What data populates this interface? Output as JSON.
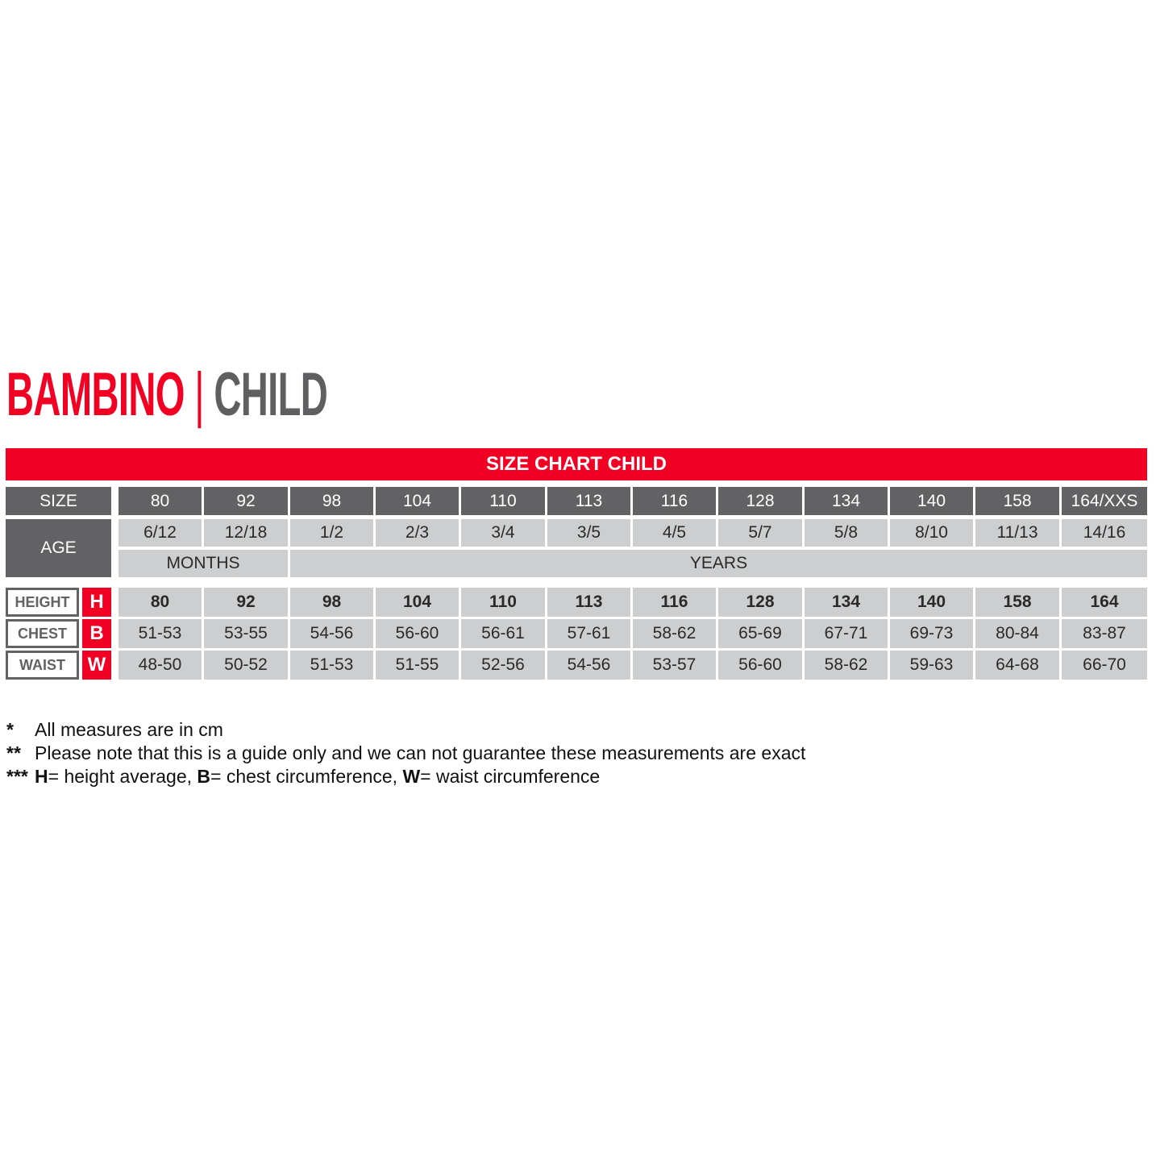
{
  "title": {
    "left": "BAMBINO",
    "separator": "|",
    "right": "CHILD"
  },
  "banner": "SIZE CHART CHILD",
  "colors": {
    "brand_red": "#f20023",
    "dark_grey": "#626264",
    "light_grey": "#cdcecf"
  },
  "rows": {
    "size_label": "SIZE",
    "sizes": [
      "80",
      "92",
      "98",
      "104",
      "110",
      "113",
      "116",
      "128",
      "134",
      "140",
      "158",
      "164/XXS"
    ],
    "age_label": "AGE",
    "ages": [
      "6/12",
      "12/18",
      "1/2",
      "2/3",
      "3/4",
      "3/5",
      "4/5",
      "5/7",
      "5/8",
      "8/10",
      "11/13",
      "14/16"
    ],
    "months_label": "MONTHS",
    "years_label": "YEARS",
    "height": {
      "label": "HEIGHT",
      "letter": "H",
      "values": [
        "80",
        "92",
        "98",
        "104",
        "110",
        "113",
        "116",
        "128",
        "134",
        "140",
        "158",
        "164"
      ]
    },
    "chest": {
      "label": "CHEST",
      "letter": "B",
      "values": [
        "51-53",
        "53-55",
        "54-56",
        "56-60",
        "56-61",
        "57-61",
        "58-62",
        "65-69",
        "67-71",
        "69-73",
        "80-84",
        "83-87"
      ]
    },
    "waist": {
      "label": "WAIST",
      "letter": "W",
      "values": [
        "48-50",
        "50-52",
        "51-53",
        "51-55",
        "52-56",
        "54-56",
        "53-57",
        "56-60",
        "58-62",
        "59-63",
        "64-68",
        "66-70"
      ]
    }
  },
  "notes": [
    {
      "marker": "*",
      "text": "All measures are in cm"
    },
    {
      "marker": "**",
      "text": "Please note that this is a guide only and we can not guarantee these measurements are exact"
    },
    {
      "marker": "***",
      "parts": [
        {
          "b": "H",
          "t": "= height average, "
        },
        {
          "b": "B",
          "t": "= chest circumference, "
        },
        {
          "b": "W",
          "t": "= waist circumference"
        }
      ]
    }
  ]
}
